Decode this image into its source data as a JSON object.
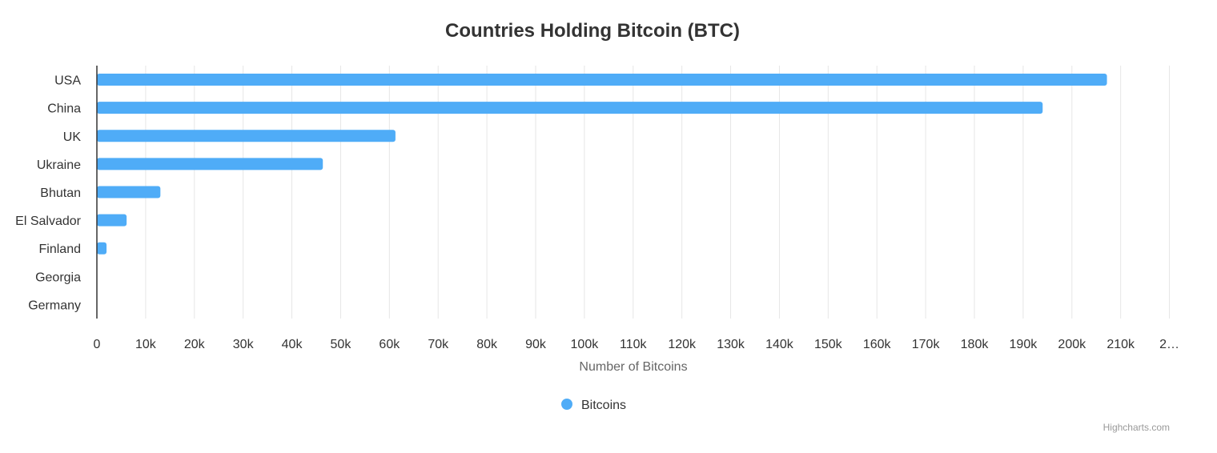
{
  "chart_data": {
    "type": "bar",
    "orientation": "horizontal",
    "title": "Countries Holding Bitcoin (BTC)",
    "categories": [
      "USA",
      "China",
      "UK",
      "Ukraine",
      "Bhutan",
      "El Salvador",
      "Finland",
      "Georgia",
      "Germany"
    ],
    "series": [
      {
        "name": "Bitcoins",
        "color": "#4facf7",
        "values": [
          207189,
          194000,
          61245,
          46351,
          13029,
          6100,
          1981,
          66,
          0
        ]
      }
    ],
    "xlabel": "Number of Bitcoins",
    "ylabel": "",
    "xlim": [
      0,
      220000
    ],
    "tick_labels": [
      "0",
      "10k",
      "20k",
      "30k",
      "40k",
      "50k",
      "60k",
      "70k",
      "80k",
      "90k",
      "100k",
      "110k",
      "120k",
      "130k",
      "140k",
      "150k",
      "160k",
      "170k",
      "180k",
      "190k",
      "200k",
      "210k",
      "2…"
    ],
    "grid": true,
    "legend_position": "bottom-center"
  },
  "credits": "Highcharts.com"
}
